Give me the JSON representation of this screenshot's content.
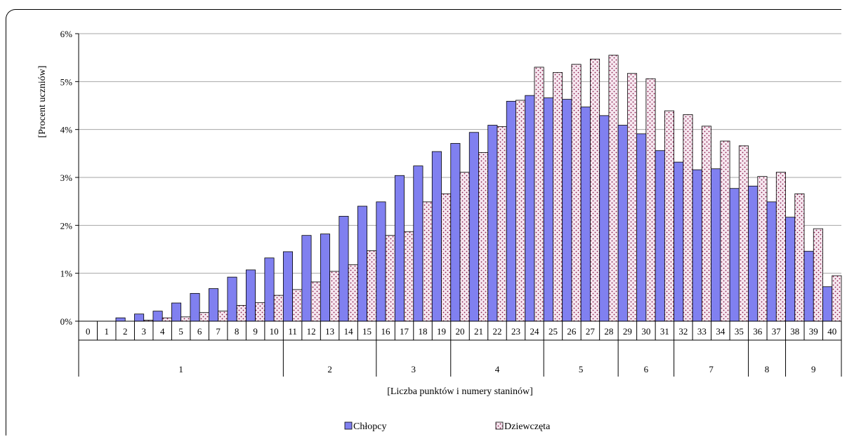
{
  "chart_data": {
    "type": "bar",
    "ylabel": "[Procent uczniów]",
    "xlabel": "[Liczba punktów i numery staninów]",
    "y_ticks": [
      "0%",
      "1%",
      "2%",
      "3%",
      "4%",
      "5%",
      "6%"
    ],
    "ylim": [
      0,
      6
    ],
    "grid": true,
    "legend_position": "bottom",
    "categories": [
      "0",
      "1",
      "2",
      "3",
      "4",
      "5",
      "6",
      "7",
      "8",
      "9",
      "10",
      "11",
      "12",
      "13",
      "14",
      "15",
      "16",
      "17",
      "18",
      "19",
      "20",
      "21",
      "22",
      "23",
      "24",
      "25",
      "26",
      "27",
      "28",
      "29",
      "30",
      "31",
      "32",
      "33",
      "34",
      "35",
      "36",
      "37",
      "38",
      "39",
      "40"
    ],
    "series": [
      {
        "name": "Chłopcy",
        "color": "#8080f0",
        "values": [
          0,
          0,
          0.07,
          0.15,
          0.21,
          0.38,
          0.58,
          0.68,
          0.92,
          1.07,
          1.32,
          1.45,
          1.79,
          1.82,
          2.19,
          2.4,
          2.49,
          3.04,
          3.24,
          3.54,
          3.71,
          3.94,
          4.09,
          4.59,
          4.71,
          4.66,
          4.63,
          4.47,
          4.29,
          4.09,
          3.91,
          3.56,
          3.32,
          3.16,
          3.18,
          2.77,
          2.82,
          2.49,
          2.17,
          1.46,
          0.72
        ]
      },
      {
        "name": "Dziewczęta",
        "color": "#f4e4ee",
        "values": [
          0,
          0,
          0,
          0.02,
          0.07,
          0.09,
          0.18,
          0.21,
          0.33,
          0.39,
          0.54,
          0.66,
          0.82,
          1.04,
          1.18,
          1.47,
          1.79,
          1.87,
          2.49,
          2.66,
          3.11,
          3.52,
          4.06,
          4.61,
          5.3,
          5.19,
          5.36,
          5.47,
          5.55,
          5.17,
          5.06,
          4.39,
          4.31,
          4.07,
          3.76,
          3.66,
          3.02,
          3.11,
          2.66,
          1.93,
          0.95
        ]
      }
    ],
    "stanines": [
      {
        "label": "1",
        "from": 0,
        "to": 10
      },
      {
        "label": "2",
        "from": 11,
        "to": 15
      },
      {
        "label": "3",
        "from": 16,
        "to": 19
      },
      {
        "label": "4",
        "from": 20,
        "to": 24
      },
      {
        "label": "5",
        "from": 25,
        "to": 28
      },
      {
        "label": "6",
        "from": 29,
        "to": 31
      },
      {
        "label": "7",
        "from": 32,
        "to": 35
      },
      {
        "label": "8",
        "from": 36,
        "to": 37
      },
      {
        "label": "9",
        "from": 38,
        "to": 40
      }
    ]
  }
}
